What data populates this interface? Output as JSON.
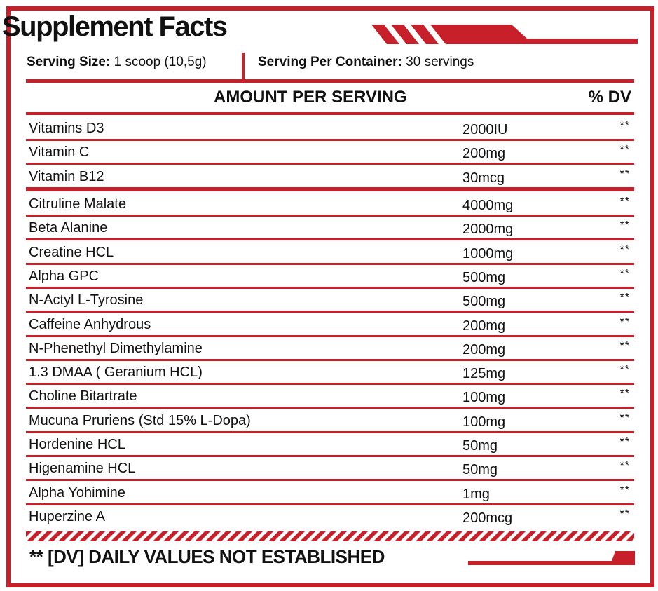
{
  "title": "Supplement Facts",
  "serving": {
    "size_label": "Serving Size:",
    "size_value": "1 scoop (10,5g)",
    "per_container_label": "Serving Per Container:",
    "per_container_value": "30 servings"
  },
  "header": {
    "amount_label": "AMOUNT PER SERVING",
    "dv_label": "% DV"
  },
  "vitamins": [
    {
      "name": "Vitamins D3",
      "amount": "2000IU",
      "dv": "**"
    },
    {
      "name": "Vitamin C",
      "amount": "200mg",
      "dv": "**"
    },
    {
      "name": "Vitamin B12",
      "amount": "30mcg",
      "dv": "**"
    }
  ],
  "ingredients": [
    {
      "name": "Citruline Malate",
      "amount": "4000mg",
      "dv": "**"
    },
    {
      "name": "Beta Alanine",
      "amount": "2000mg",
      "dv": "**"
    },
    {
      "name": "Creatine HCL",
      "amount": "1000mg",
      "dv": "**"
    },
    {
      "name": "Alpha GPC",
      "amount": "500mg",
      "dv": "**"
    },
    {
      "name": "N-Actyl L-Tyrosine",
      "amount": "500mg",
      "dv": "**"
    },
    {
      "name": "Caffeine Anhydrous",
      "amount": "200mg",
      "dv": "**"
    },
    {
      "name": "N-Phenethyl Dimethylamine",
      "amount": "200mg",
      "dv": "**"
    },
    {
      "name": "1.3 DMAA ( Geranium HCL)",
      "amount": "125mg",
      "dv": "**"
    },
    {
      "name": "Choline Bitartrate",
      "amount": "100mg",
      "dv": "**"
    },
    {
      "name": "Mucuna Pruriens (Std 15% L-Dopa)",
      "amount": "100mg",
      "dv": "**"
    },
    {
      "name": "Hordenine HCL",
      "amount": "50mg",
      "dv": "**"
    },
    {
      "name": "Higenamine HCL",
      "amount": "50mg",
      "dv": "**"
    },
    {
      "name": "Alpha Yohimine",
      "amount": "1mg",
      "dv": "**"
    },
    {
      "name": "Huperzine A",
      "amount": "200mcg",
      "dv": "**"
    }
  ],
  "footer": "** [DV] DAILY VALUES NOT ESTABLISHED",
  "colors": {
    "accent": "#c8202a",
    "text": "#111111",
    "background": "#ffffff"
  }
}
